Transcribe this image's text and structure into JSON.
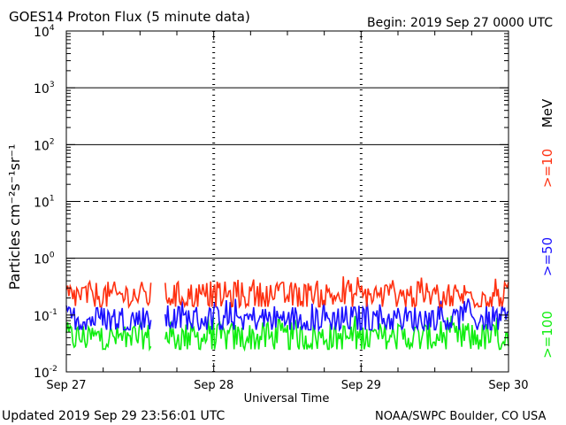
{
  "header": {
    "title": "GOES14 Proton Flux (5 minute data)",
    "begin": "Begin: 2019 Sep 27 0000 UTC"
  },
  "footer": {
    "updated": "Updated 2019 Sep 29 23:56:01 UTC",
    "credit": "NOAA/SWPC Boulder, CO USA"
  },
  "chart_data": {
    "type": "line",
    "title": "GOES14 Proton Flux (5 minute data)",
    "xlabel": "Universal Time",
    "ylabel": "Particles cm⁻²s⁻¹sr⁻¹",
    "yscale": "log",
    "ylim": [
      0.01,
      10000
    ],
    "xlim": [
      "2019-09-27",
      "2019-09-30"
    ],
    "x_ticks": [
      "Sep 27",
      "Sep 28",
      "Sep 29",
      "Sep 30"
    ],
    "y_ticks": [
      {
        "base": "10",
        "exp": "-2"
      },
      {
        "base": "10",
        "exp": "-1"
      },
      {
        "base": "10",
        "exp": "0"
      },
      {
        "base": "10",
        "exp": "1"
      },
      {
        "base": "10",
        "exp": "2"
      },
      {
        "base": "10",
        "exp": "3"
      },
      {
        "base": "10",
        "exp": "4"
      }
    ],
    "reference_lines": [
      {
        "value": 1,
        "style": "solid"
      },
      {
        "value": 10,
        "style": "dashed"
      },
      {
        "value": 100,
        "style": "solid"
      },
      {
        "value": 1000,
        "style": "solid"
      }
    ],
    "legend_unit": "MeV",
    "series": [
      {
        "name": ">=10",
        "color": "#ff3010",
        "typical": 0.22,
        "low": 0.14,
        "high": 0.5
      },
      {
        "name": ">=50",
        "color": "#1a10ff",
        "typical": 0.085,
        "low": 0.055,
        "high": 0.2
      },
      {
        "name": ">=100",
        "color": "#10ee10",
        "typical": 0.04,
        "low": 0.025,
        "high": 0.1
      }
    ],
    "data_gap": {
      "start_day": 0.58,
      "end_day": 0.67
    }
  }
}
